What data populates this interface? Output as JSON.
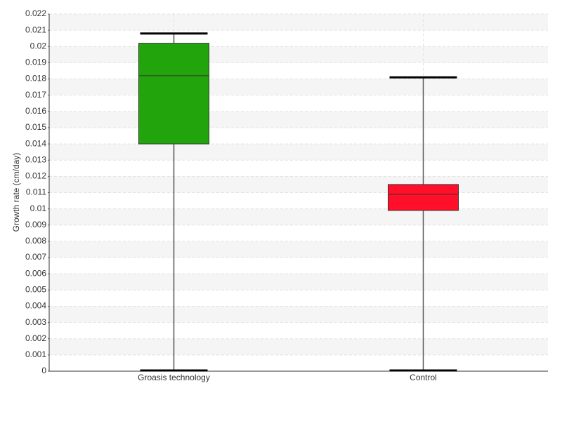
{
  "chart_data": {
    "type": "box",
    "y_label": "Growth rate (cm/day)",
    "categories": [
      "Groasis technology",
      "Control"
    ],
    "boxes": [
      {
        "min": 0,
        "q1": 0.014,
        "median": 0.0182,
        "q3": 0.0202,
        "max": 0.0208,
        "color": "#22a50c"
      },
      {
        "min": 0,
        "q1": 0.0099,
        "median": 0.0109,
        "q3": 0.0115,
        "max": 0.0181,
        "color": "#ff0f2a"
      }
    ],
    "ylim": [
      0,
      0.022
    ],
    "yticks": [
      0,
      0.001,
      0.002,
      0.003,
      0.004,
      0.005,
      0.006,
      0.007,
      0.008,
      0.009,
      0.01,
      0.011,
      0.012,
      0.013,
      0.014,
      0.015,
      0.016,
      0.017,
      0.018,
      0.019,
      0.02,
      0.021,
      0.022
    ],
    "grid": true
  }
}
